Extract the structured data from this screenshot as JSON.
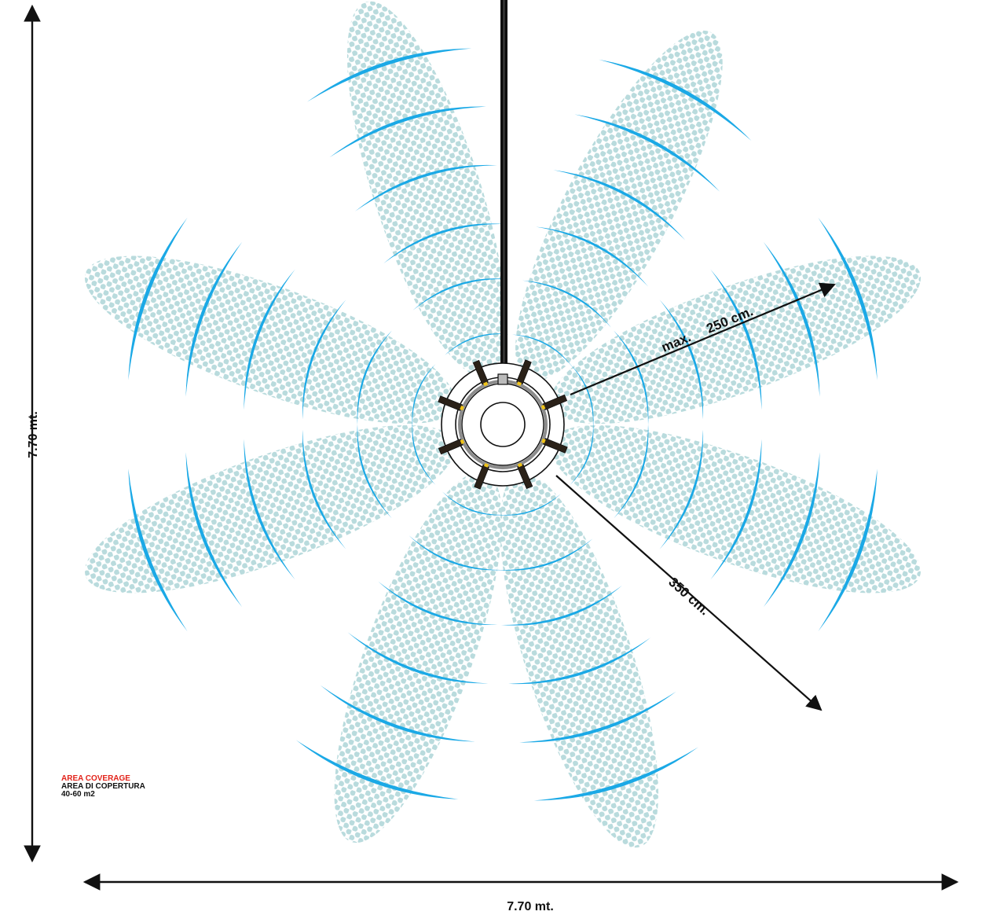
{
  "dimensions": {
    "height_label": "7.70 mt.",
    "width_label": "7.70 mt."
  },
  "radii": {
    "max_label_prefix": "max.",
    "max_label_value": "250 cm.",
    "reach_label": "350 cm."
  },
  "legend": {
    "title": "AREA COVERAGE",
    "subtitle": "AREA DI COPERTURA",
    "area": "40-60 m2"
  },
  "colors": {
    "wave": "#1ba9e6",
    "lobe_dots": "#b9dbdd",
    "ink": "#111111",
    "legend_title": "#e2231a",
    "connector": "#f0c419"
  },
  "emitters": {
    "count": 8
  },
  "icons": {
    "device": "antenna-hub-icon",
    "arrow": "arrow-icon"
  }
}
